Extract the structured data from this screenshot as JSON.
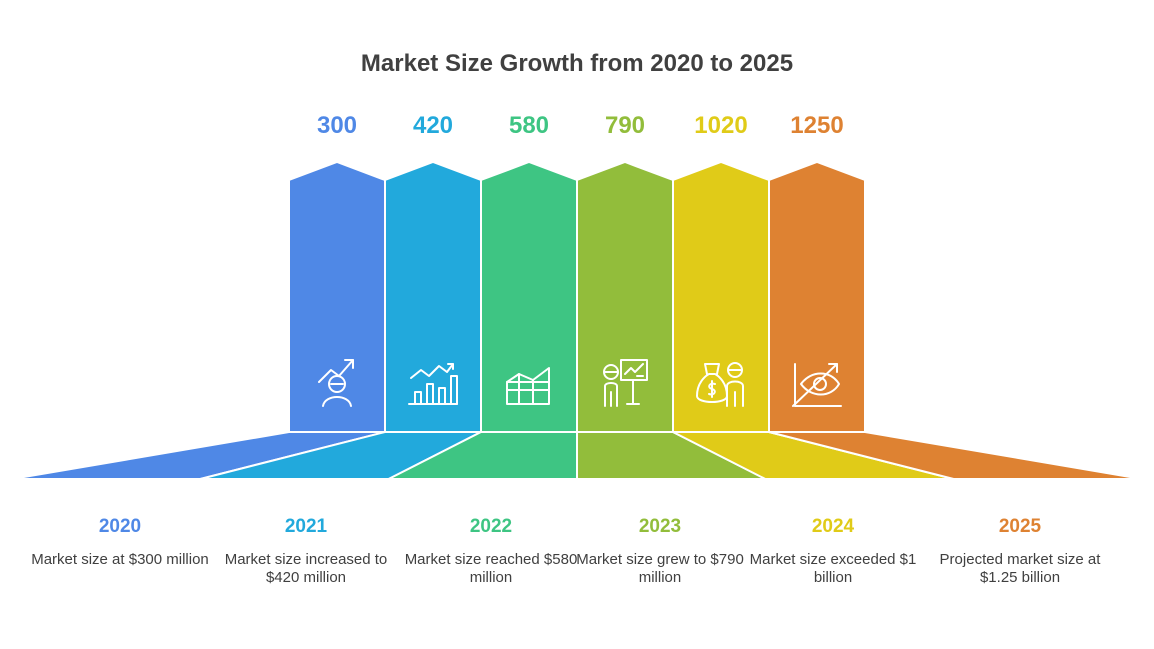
{
  "title": "Market Size Growth from 2020 to 2025",
  "chart_data": {
    "type": "bar",
    "title": "Market Size Growth from 2020 to 2025",
    "categories": [
      "2020",
      "2021",
      "2022",
      "2023",
      "2024",
      "2025"
    ],
    "values": [
      300,
      420,
      580,
      790,
      1020,
      1250
    ],
    "unit": "million USD"
  },
  "items": [
    {
      "year": "2020",
      "value": "300",
      "desc": "Market size at $300 million",
      "color": "#4f88e6",
      "icon": "growth-person-icon"
    },
    {
      "year": "2021",
      "value": "420",
      "desc": "Market size increased to $420 million",
      "color": "#22a9dc",
      "icon": "bar-chart-trend-icon"
    },
    {
      "year": "2022",
      "value": "580",
      "desc": "Market size reached $580 million",
      "color": "#3ec583",
      "icon": "area-chart-grid-icon"
    },
    {
      "year": "2023",
      "value": "790",
      "desc": "Market size grew to $790 million",
      "color": "#92bd3b",
      "icon": "presenter-board-icon"
    },
    {
      "year": "2024",
      "value": "1020",
      "desc": "Market size exceeded $1 billion",
      "color": "#e0cb18",
      "icon": "money-bag-person-icon"
    },
    {
      "year": "2025",
      "value": "1250",
      "desc": "Projected market size at $1.25 billion",
      "color": "#de8232",
      "icon": "eye-trend-icon"
    }
  ]
}
